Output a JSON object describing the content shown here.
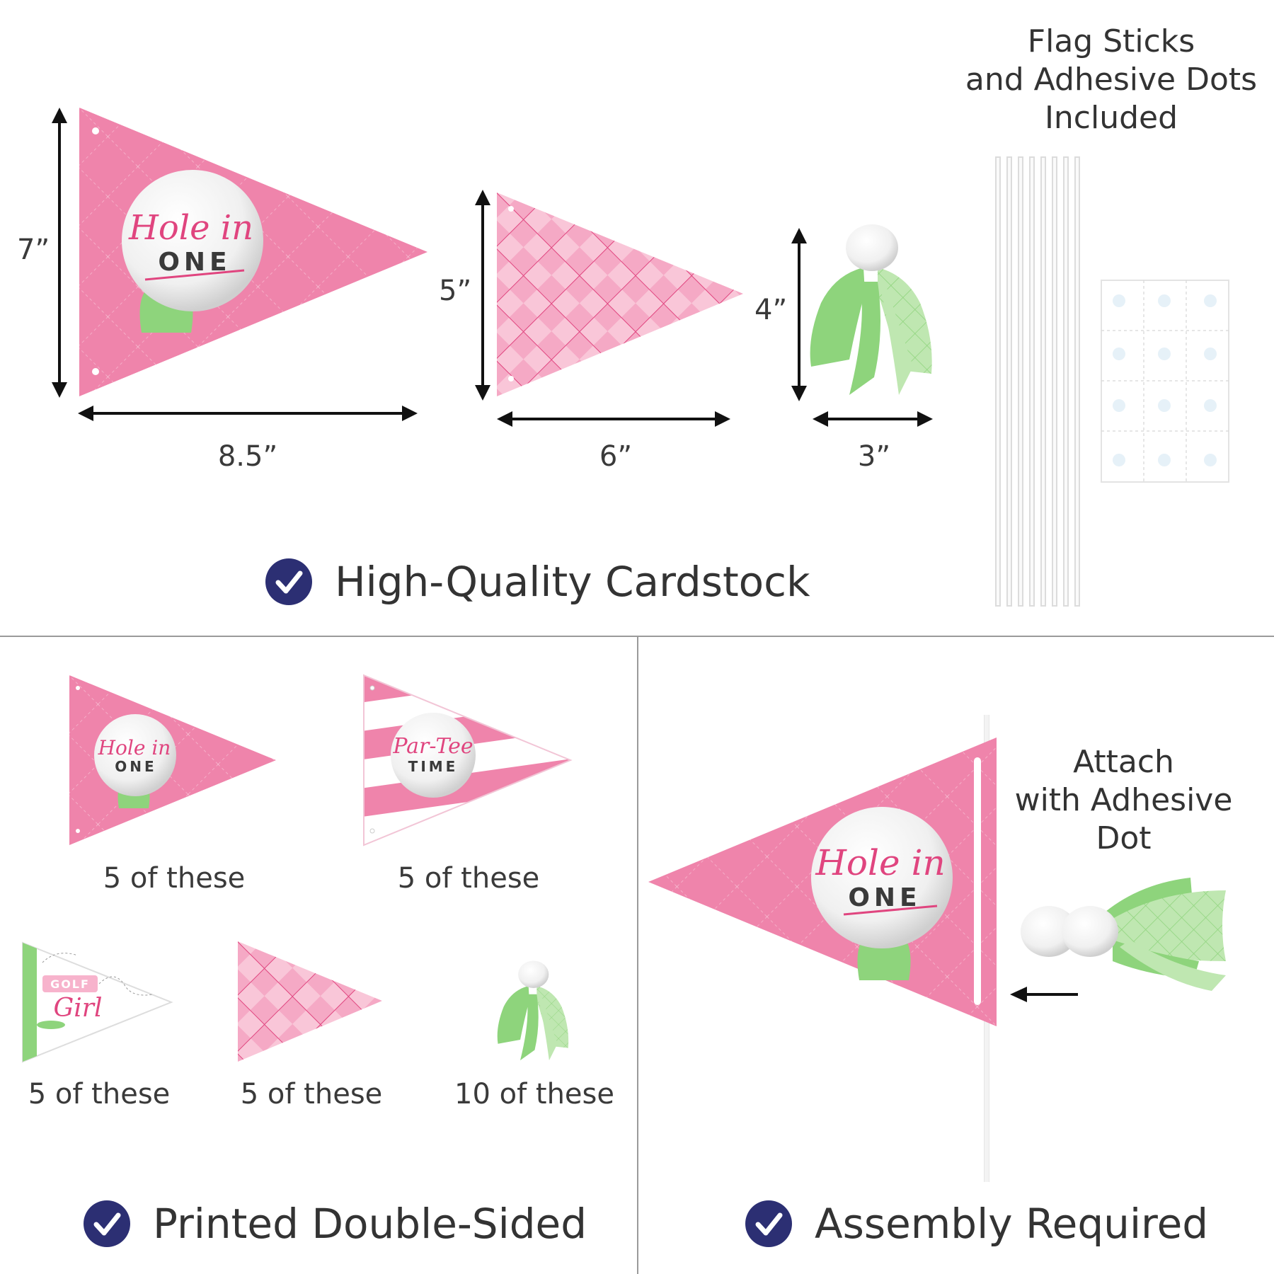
{
  "colors": {
    "pink": "#ef84ab",
    "pink_dark": "#e0457f",
    "pink_light": "#f7b3cc",
    "green": "#8ed47c",
    "green_light": "#bfe7b1",
    "navy": "#2c2f73",
    "text": "#3a3a3a"
  },
  "top": {
    "header": [
      "Flag Sticks",
      "and Adhesive Dots",
      "Included"
    ],
    "dims": {
      "large_height": "7”",
      "large_width": "8.5”",
      "medium_height": "5”",
      "medium_width": "6”",
      "tassel_height": "4”",
      "tassel_width": "3”"
    },
    "feature": "High-Quality Cardstock"
  },
  "designs": {
    "hole_in": "Hole in",
    "one": "ONE",
    "par_tee": "Par-Tee",
    "time": "TIME",
    "golf": "GOLF",
    "girl": "Girl"
  },
  "bottom_left": {
    "counts": [
      "5 of these",
      "5 of these",
      "5 of these",
      "5 of these",
      "10 of these"
    ],
    "feature": "Printed Double-Sided"
  },
  "bottom_right": {
    "instruction": [
      "Attach",
      "with Adhesive",
      "Dot"
    ],
    "feature": "Assembly Required"
  },
  "icons": [
    "check-circle-icon",
    "arrow-left-icon",
    "golf-ball-icon",
    "tassel-icon"
  ]
}
